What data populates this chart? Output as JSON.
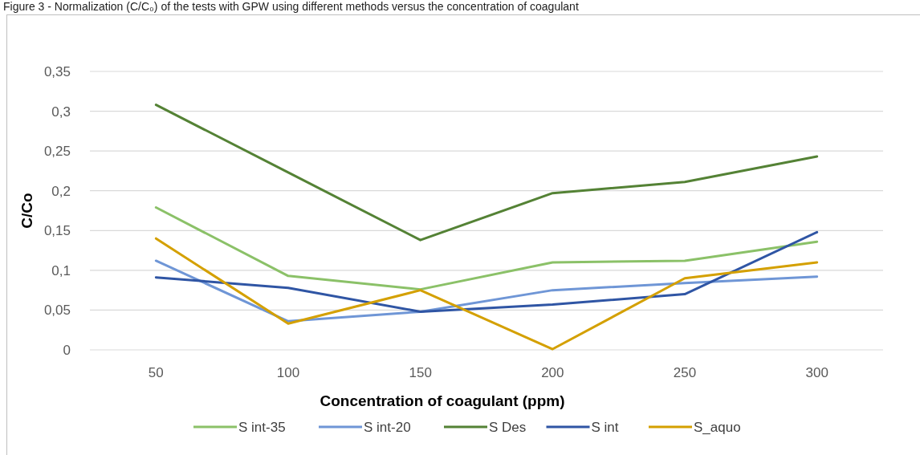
{
  "chart_data": {
    "type": "line",
    "title": "Figure 3 - Normalization (C/C₀) of the tests with GPW using different methods versus the concentration of coagulant",
    "xlabel": "Concentration of coagulant (ppm)",
    "ylabel": "C/Co",
    "categories": [
      "50",
      "100",
      "150",
      "200",
      "250",
      "300"
    ],
    "series": [
      {
        "name": "S int-35",
        "color": "#8bc168",
        "values": [
          0.179,
          0.093,
          0.076,
          0.11,
          0.112,
          0.136
        ]
      },
      {
        "name": "S int-20",
        "color": "#6f96d6",
        "values": [
          0.112,
          0.036,
          0.048,
          0.075,
          0.084,
          0.092
        ]
      },
      {
        "name": "S Des",
        "color": "#548235",
        "values": [
          0.308,
          0.223,
          0.138,
          0.197,
          0.211,
          0.243
        ]
      },
      {
        "name": "S int",
        "color": "#2f55a4",
        "values": [
          0.091,
          0.078,
          0.048,
          0.057,
          0.07,
          0.148
        ]
      },
      {
        "name": "S_aquo",
        "color": "#d4a000",
        "values": [
          0.14,
          0.033,
          0.075,
          0.001,
          0.09,
          0.11
        ]
      }
    ],
    "ylim": [
      0,
      0.35
    ],
    "yticks": [
      {
        "value": 0,
        "label": "0"
      },
      {
        "value": 0.05,
        "label": "0,05"
      },
      {
        "value": 0.1,
        "label": "0,1"
      },
      {
        "value": 0.15,
        "label": "0,15"
      },
      {
        "value": 0.2,
        "label": "0,2"
      },
      {
        "value": 0.25,
        "label": "0,25"
      },
      {
        "value": 0.3,
        "label": "0,3"
      },
      {
        "value": 0.35,
        "label": "0,35"
      }
    ],
    "grid": "y",
    "legend": "bottom",
    "marker": "none",
    "line_style": "solid"
  }
}
